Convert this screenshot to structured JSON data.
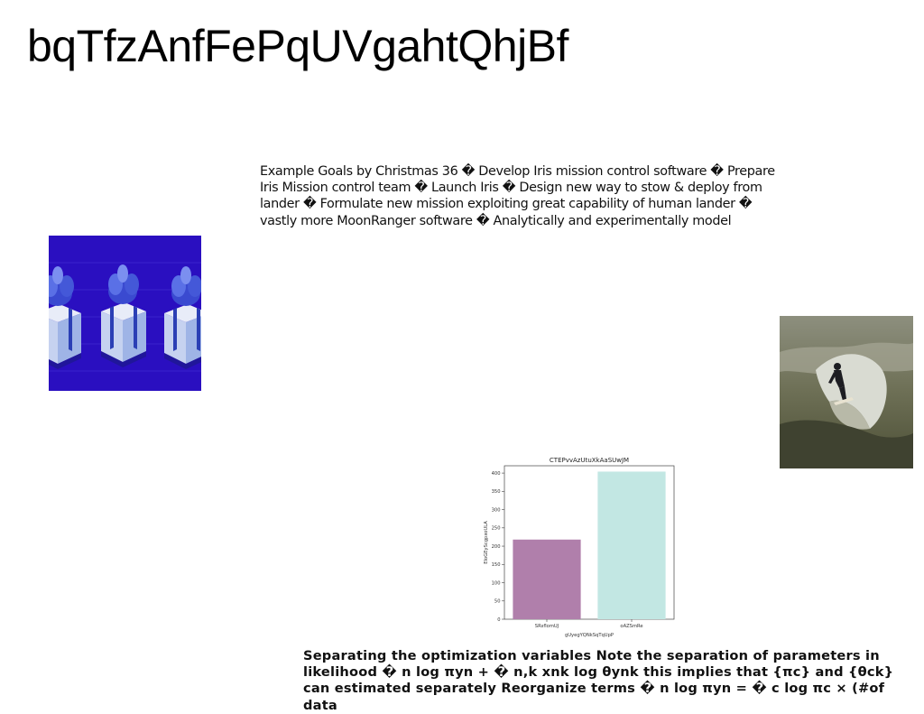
{
  "page": {
    "title": "bqTfzAnfFePqUVgahtQhjBf",
    "paragraph_top": "Example Goals by Christmas 36 � Develop Iris mission control software � Prepare Iris Mission control team � Launch Iris � Design new way to stow & deploy from lander � Formulate new mission exploiting great capability of human lander � vastly more MoonRanger software � Analytically and experimentally model",
    "paragraph_bottom": "Separating the optimization variables Note the separation of parameters in likelihood � n log πyn + � n,k xnk log θynk this implies that {πc} and {θck} can estimated separately Reorganize terms � n log πyn = � c log πc × (#of data"
  },
  "images": {
    "gifts": {
      "description_icon": "gift-boxes-photo",
      "bg_color": "#2a0fc0"
    },
    "surfer": {
      "description_icon": "surfer-photo"
    }
  },
  "chart_data": {
    "type": "bar",
    "title": "CTEPvvAzUtuXkAaSUwJM",
    "xlabel": "gUyegYQNkSqTqUpP",
    "ylabel": "EIoGEyScgpxoULA",
    "categories": [
      "SRsflomUJ",
      "oAZSmRe"
    ],
    "values": [
      218,
      404
    ],
    "colors": [
      "#b07fab",
      "#c2e7e3"
    ],
    "ylim": [
      0,
      420
    ],
    "yticks": [
      0,
      50,
      100,
      150,
      200,
      250,
      300,
      350,
      400
    ],
    "grid": false,
    "legend": "none"
  }
}
